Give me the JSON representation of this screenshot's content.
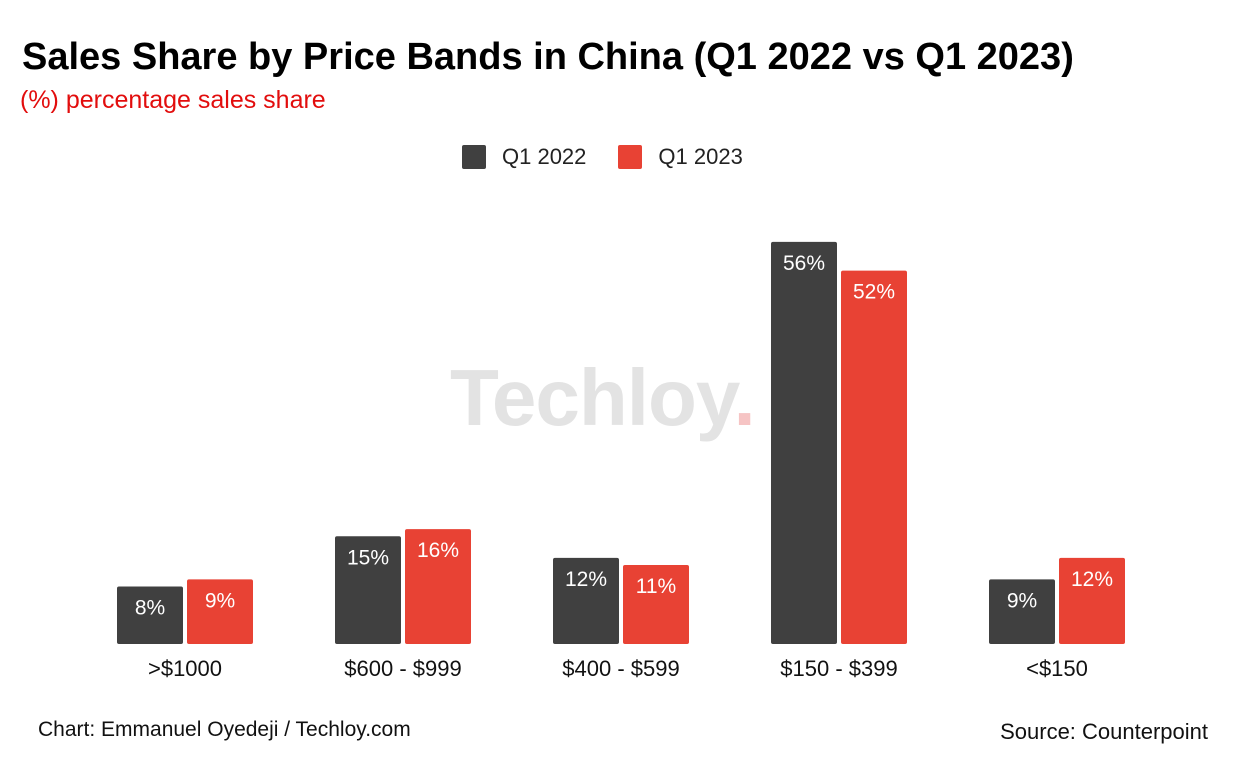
{
  "title": "Sales Share by Price Bands in China (Q1 2022 vs Q1 2023)",
  "subtitle": "(%) percentage sales share",
  "watermark": {
    "text": "Techloy",
    "dot": "."
  },
  "footer": {
    "credit": "Chart: Emmanuel Oyedeji / Techloy.com",
    "source": "Source: Counterpoint"
  },
  "colors": {
    "q1_2022": "#404040",
    "q1_2023": "#e84234",
    "label": "#ffffff"
  },
  "chart_data": {
    "type": "bar",
    "title": "Sales Share by Price Bands in China (Q1 2022 vs Q1 2023)",
    "xlabel": "",
    "ylabel": "(%) percentage sales share",
    "ylim": [
      0,
      60
    ],
    "grid": false,
    "legend_position": "top-center",
    "categories": [
      ">$1000",
      "$600 - $999",
      "$400 - $599",
      "$150 - $399",
      "<$150"
    ],
    "series": [
      {
        "name": "Q1 2022",
        "values": [
          8,
          15,
          12,
          56,
          9
        ],
        "labels": [
          "8%",
          "15%",
          "12%",
          "56%",
          "9%"
        ]
      },
      {
        "name": "Q1 2023",
        "values": [
          9,
          16,
          11,
          52,
          12
        ],
        "labels": [
          "9%",
          "16%",
          "11%",
          "52%",
          "12%"
        ]
      }
    ]
  }
}
